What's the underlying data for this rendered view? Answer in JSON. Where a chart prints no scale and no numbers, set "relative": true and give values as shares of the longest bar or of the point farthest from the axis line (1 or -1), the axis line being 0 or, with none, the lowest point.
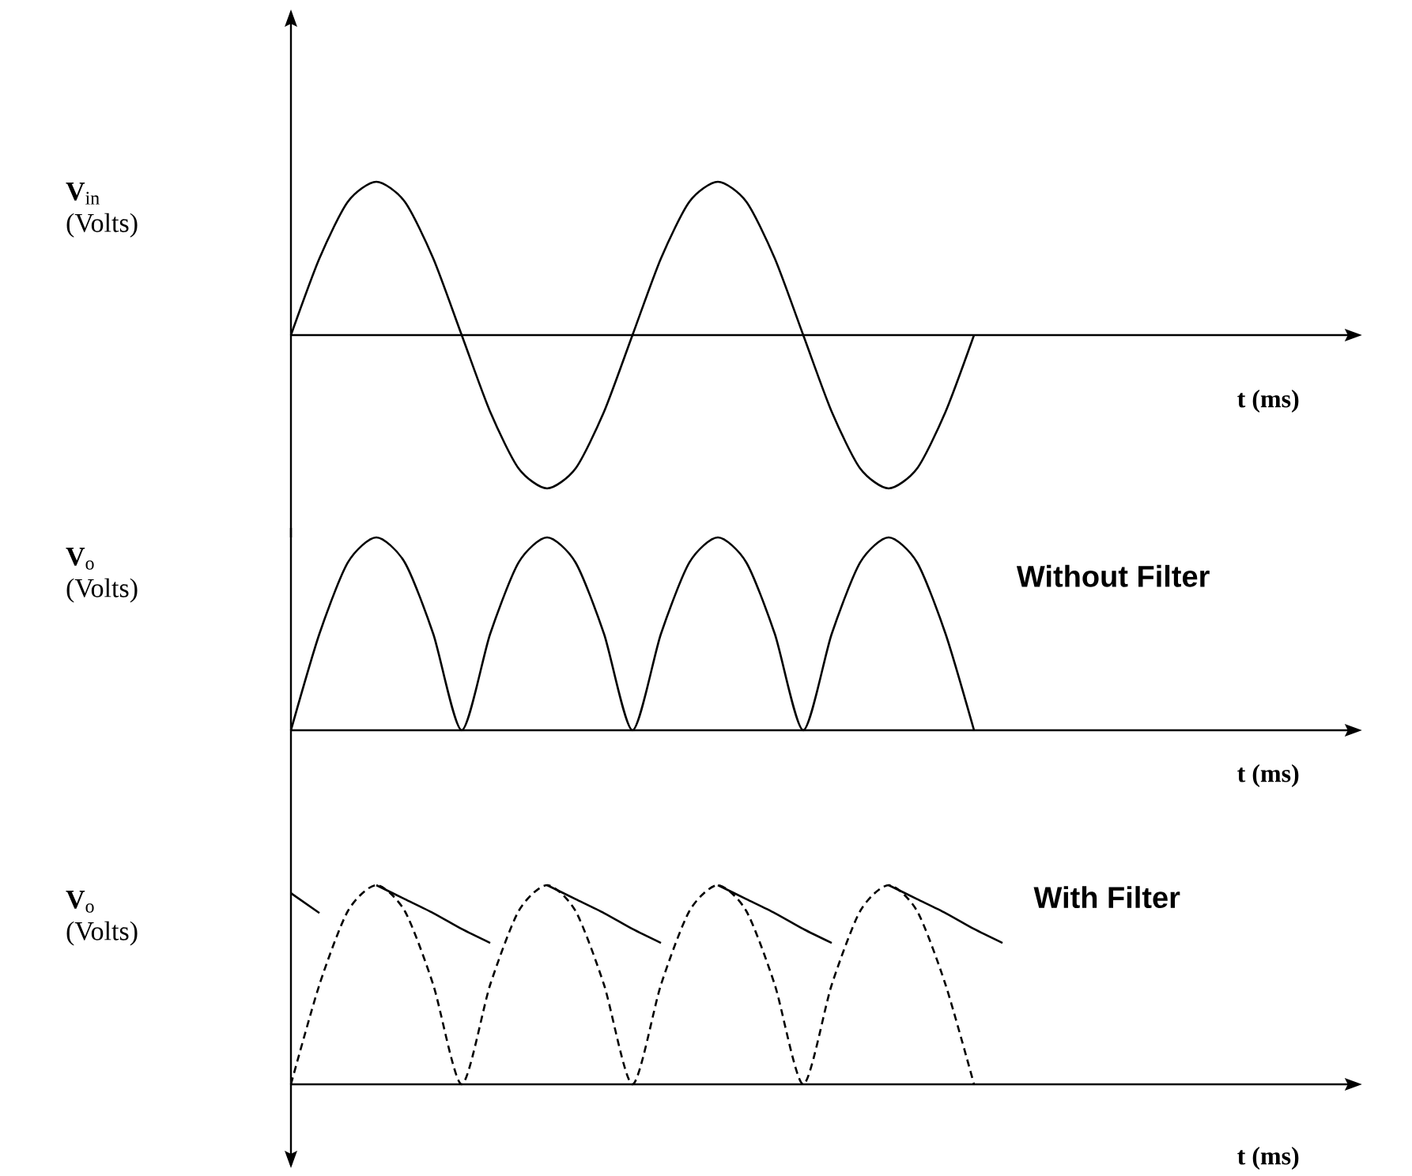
{
  "chart_data": [
    {
      "type": "line",
      "relative": true,
      "ylabel": "**V**$_{in}$ (Volts)",
      "xlabel": "t (ms)",
      "categories": [
        null,
        null,
        null,
        null,
        null,
        null,
        null,
        null,
        null,
        null,
        null,
        null,
        null,
        null,
        null,
        null,
        null,
        null,
        null,
        null,
        null,
        null,
        null,
        null,
        null,
        null,
        null,
        null,
        null,
        null,
        null,
        null,
        null,
        null,
        null,
        null,
        null,
        null
      ],
      "series": [
        {
          "color": "#000000",
          "values": [
            0,
            0.5,
            0.87,
            1,
            0.87,
            0.5,
            0,
            -0.5,
            -0.87,
            -1,
            -0.87,
            -0.5,
            0,
            0.5,
            0.87,
            1,
            0.87,
            0.5,
            0,
            -0.5,
            -0.87,
            -1,
            -0.87,
            -0.5,
            0,
            null,
            null,
            null,
            null,
            null,
            null,
            null,
            null,
            null,
            null,
            null,
            null,
            null
          ]
        }
      ]
    },
    {
      "type": "line",
      "relative": true,
      "ylabel": "**V**$_{o}$ (Volts)",
      "xlabel": "t (ms)",
      "annotations": [
        "Without Filter"
      ],
      "categories": [
        null,
        null,
        null,
        null,
        null,
        null,
        null,
        null,
        null,
        null,
        null,
        null,
        null,
        null,
        null,
        null,
        null,
        null,
        null,
        null,
        null,
        null,
        null,
        null,
        null,
        null,
        null,
        null,
        null,
        null,
        null,
        null,
        null,
        null,
        null,
        null,
        null,
        null
      ],
      "series": [
        {
          "color": "#000000",
          "values": [
            0,
            0.5,
            0.87,
            1,
            0.87,
            0.5,
            0,
            0.5,
            0.87,
            1,
            0.87,
            0.5,
            0,
            0.5,
            0.87,
            1,
            0.87,
            0.5,
            0,
            0.5,
            0.87,
            1,
            0.87,
            0.5,
            0,
            null,
            null,
            null,
            null,
            null,
            null,
            null,
            null,
            null,
            null,
            null,
            null,
            null
          ]
        }
      ]
    },
    {
      "type": "line",
      "relative": true,
      "ylabel": "**V**$_{o}$ (Volts)",
      "xlabel": "t (ms)",
      "annotations": [
        "With Filter"
      ],
      "categories": [
        null,
        null,
        null,
        null,
        null,
        null,
        null,
        null,
        null,
        null,
        null,
        null,
        null,
        null,
        null,
        null,
        null,
        null,
        null,
        null,
        null,
        null,
        null,
        null,
        null,
        null,
        null,
        null,
        null,
        null,
        null,
        null,
        null,
        null,
        null,
        null,
        null,
        null
      ],
      "series": [
        {
          "color": "#000000",
          "line_style": "dashed",
          "values": [
            0,
            0.5,
            0.87,
            1,
            0.87,
            0.5,
            0,
            0.5,
            0.87,
            1,
            0.87,
            0.5,
            0,
            0.5,
            0.87,
            1,
            0.87,
            0.5,
            0,
            0.5,
            0.87,
            1,
            0.87,
            0.5,
            0,
            null,
            null,
            null,
            null,
            null,
            null,
            null,
            null,
            null,
            null,
            null,
            null,
            null
          ]
        },
        {
          "color": "#000000",
          "line_style": "solid",
          "values": [
            0.96,
            0.86,
            null,
            1,
            0.93,
            0.86,
            0.78,
            0.71,
            null,
            1,
            0.93,
            0.86,
            0.78,
            0.71,
            null,
            1,
            0.93,
            0.86,
            0.78,
            0.71,
            null,
            1,
            0.93,
            0.86,
            0.78,
            0.71,
            null,
            null,
            null,
            null,
            null,
            null,
            null,
            null,
            null,
            null,
            null,
            null
          ]
        }
      ]
    }
  ]
}
